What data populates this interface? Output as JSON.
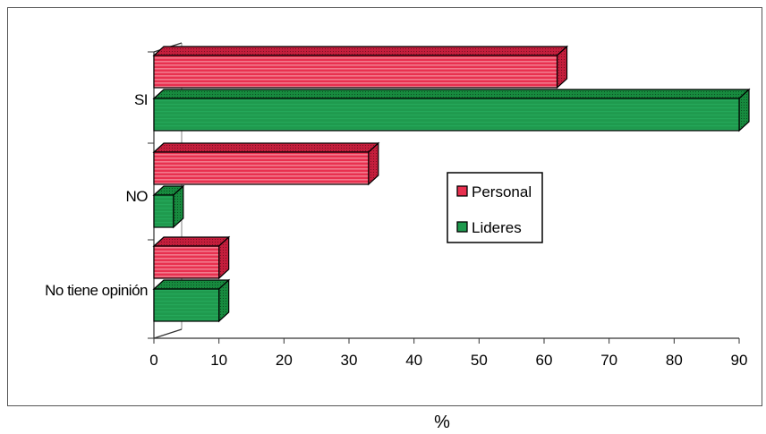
{
  "chart_data": {
    "type": "bar",
    "orientation": "horizontal",
    "style": "3d",
    "categories": [
      "SI",
      "NO",
      "No tiene opinión"
    ],
    "series": [
      {
        "name": "Personal",
        "values": [
          62,
          33,
          10
        ]
      },
      {
        "name": "Lideres",
        "values": [
          90,
          3,
          10
        ]
      }
    ],
    "xlabel": "%",
    "ylabel": "",
    "xlim": [
      0,
      90
    ],
    "xticks": [
      0,
      10,
      20,
      30,
      40,
      50,
      60,
      70,
      80,
      90
    ],
    "grid": false,
    "legend": {
      "placement": "center-right",
      "entries": [
        "Personal",
        "Lideres"
      ]
    },
    "colors": {
      "Personal": "#e8304f",
      "Lideres": "#1f9a4e"
    }
  }
}
